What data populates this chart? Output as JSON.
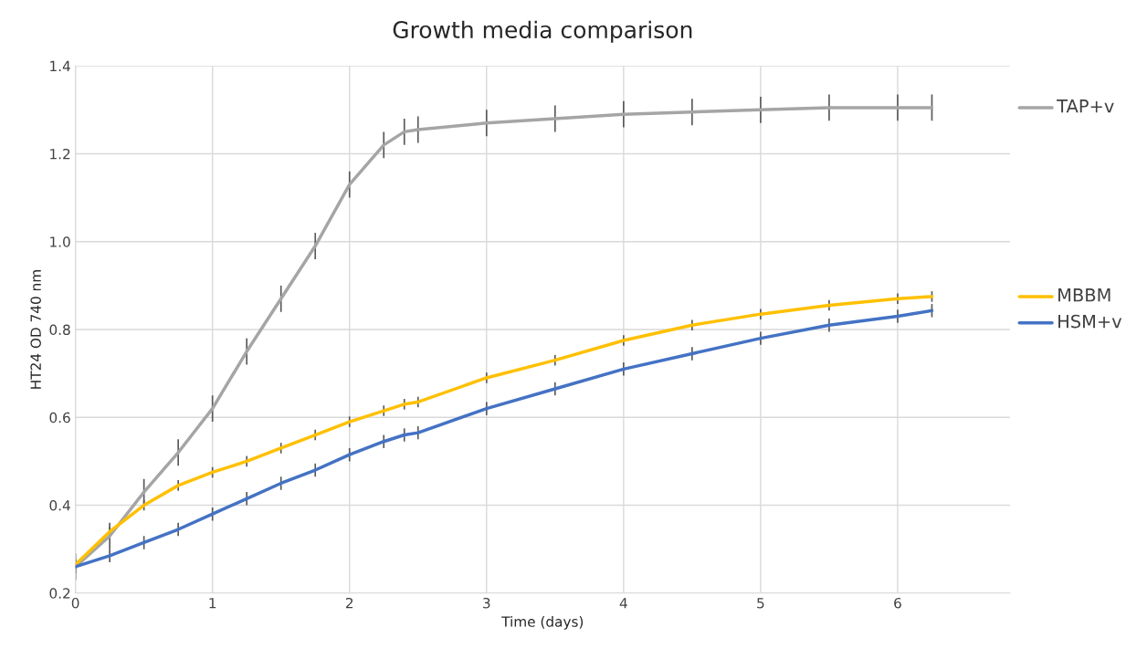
{
  "chart_data": {
    "type": "line",
    "title": "Growth media comparison",
    "xlabel": "Time (days)",
    "ylabel": "HT24 OD 740 nm",
    "xlim": [
      0,
      6.82
    ],
    "xticks": [
      0,
      1,
      2,
      3,
      4,
      5,
      6
    ],
    "ylim": [
      0.2,
      1.4
    ],
    "yticks": [
      0.2,
      0.4,
      0.6,
      0.8,
      {
        "value": 1,
        "label": "1.0"
      },
      1.2,
      1.4
    ],
    "grid": true,
    "legend": "right",
    "marker": "none",
    "line_style": "solid",
    "x": [
      0,
      0.25,
      0.5,
      0.75,
      1,
      1.25,
      1.5,
      1.75,
      2,
      2.25,
      2.4,
      2.5,
      3,
      3.5,
      4,
      4.5,
      5,
      5.5,
      6,
      6.25
    ],
    "series": [
      {
        "name": "TAP+v",
        "color": "#a5a5a5",
        "values": [
          0.26,
          0.33,
          0.43,
          0.52,
          0.62,
          0.75,
          0.87,
          0.99,
          1.13,
          1.22,
          1.25,
          1.255,
          1.27,
          1.28,
          1.29,
          1.295,
          1.3,
          1.305,
          1.305,
          1.305
        ],
        "errors": [
          0.03,
          0.03,
          0.03,
          0.03,
          0.03,
          0.03,
          0.03,
          0.03,
          0.03,
          0.03,
          0.03,
          0.03,
          0.03,
          0.03,
          0.03,
          0.03,
          0.03,
          0.03,
          0.03,
          0.03
        ]
      },
      {
        "name": "MBBM",
        "color": "#ffc000",
        "values": [
          0.265,
          0.34,
          0.4,
          0.445,
          0.475,
          0.5,
          0.53,
          0.56,
          0.59,
          0.615,
          0.63,
          0.635,
          0.69,
          0.73,
          0.775,
          0.81,
          0.835,
          0.855,
          0.87,
          0.875
        ],
        "errors": [
          0.012,
          0.012,
          0.012,
          0.012,
          0.012,
          0.012,
          0.012,
          0.012,
          0.012,
          0.012,
          0.012,
          0.012,
          0.012,
          0.012,
          0.012,
          0.012,
          0.012,
          0.012,
          0.012,
          0.012
        ]
      },
      {
        "name": "HSM+v",
        "color": "#4472c4",
        "values": [
          0.26,
          0.285,
          0.315,
          0.345,
          0.38,
          0.415,
          0.45,
          0.48,
          0.515,
          0.545,
          0.56,
          0.565,
          0.62,
          0.665,
          0.71,
          0.745,
          0.78,
          0.81,
          0.83,
          0.843
        ],
        "errors": [
          0.015,
          0.015,
          0.015,
          0.015,
          0.015,
          0.015,
          0.015,
          0.015,
          0.015,
          0.015,
          0.015,
          0.015,
          0.015,
          0.015,
          0.015,
          0.015,
          0.015,
          0.015,
          0.015,
          0.015
        ]
      }
    ]
  }
}
